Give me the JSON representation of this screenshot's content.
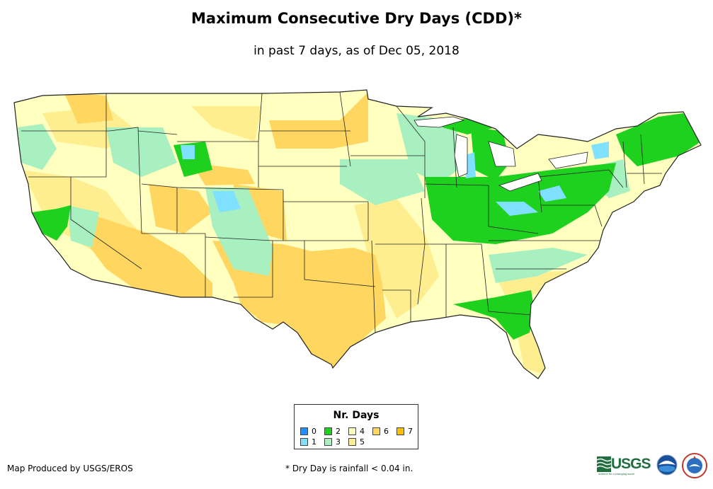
{
  "title": "Maximum Consecutive Dry Days (CDD)*",
  "subtitle": "in past 7 days, as of Dec 05, 2018",
  "legend": {
    "title": "Nr. Days",
    "items": [
      {
        "label": "0",
        "color": "#1e90ff"
      },
      {
        "label": "1",
        "color": "#80e0ff"
      },
      {
        "label": "2",
        "color": "#1fd11f"
      },
      {
        "label": "3",
        "color": "#a8f0c0"
      },
      {
        "label": "4",
        "color": "#ffffc0"
      },
      {
        "label": "5",
        "color": "#ffee90"
      },
      {
        "label": "6",
        "color": "#fed660"
      },
      {
        "label": "7",
        "color": "#ffc000"
      }
    ]
  },
  "credit": "Map Produced by USGS/EROS",
  "footnote": "* Dry Day is rainfall < 0.04 in.",
  "logos": {
    "usgs_text": "USGS",
    "usgs_tagline": "science for a changing world",
    "noaa_icon": "noaa-logo-icon",
    "nws_icon": "nws-logo-icon"
  }
}
